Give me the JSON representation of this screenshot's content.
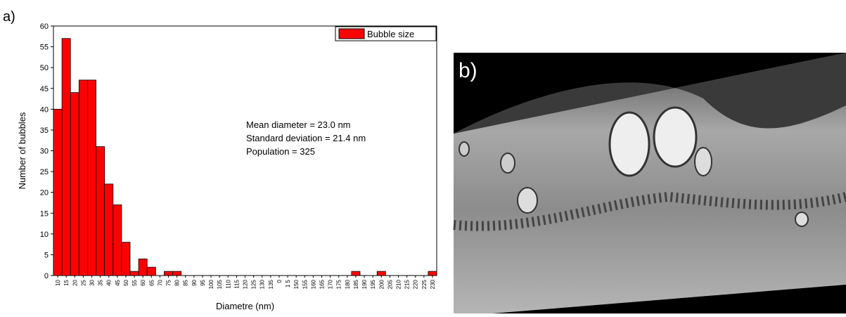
{
  "chart_data": {
    "type": "histogram",
    "xlabel": "Diametre (nm)",
    "ylabel": "Number of bubbles",
    "categories": [
      "10",
      "15",
      "20",
      "25",
      "30",
      "35",
      "40",
      "45",
      "50",
      "55",
      "60",
      "65",
      "70",
      "75",
      "80",
      "85",
      "90",
      "95",
      "100",
      "105",
      "110",
      "115",
      "120",
      "125",
      "130",
      "135",
      "0",
      "1 5",
      "150",
      "155",
      "160",
      "165",
      "170",
      "175",
      "180",
      "185",
      "190",
      "195",
      "200",
      "205",
      "210",
      "215",
      "220",
      "225",
      "230"
    ],
    "series": [
      {
        "name": "Bubble size",
        "color": "#ff0000",
        "values": [
          40,
          57,
          44,
          47,
          47,
          31,
          22,
          17,
          8,
          1,
          4,
          2,
          0,
          1,
          1,
          0,
          0,
          0,
          0,
          0,
          0,
          0,
          0,
          0,
          0,
          0,
          0,
          0,
          0,
          0,
          0,
          0,
          0,
          0,
          0,
          1,
          0,
          0,
          1,
          0,
          0,
          0,
          0,
          0,
          1
        ]
      }
    ],
    "ylim": [
      0,
      60
    ],
    "yticks": [
      0,
      5,
      10,
      15,
      20,
      25,
      30,
      35,
      40,
      45,
      50,
      55,
      60
    ],
    "legend": "top-right",
    "annotations": [
      "Mean diameter = 23.0 nm",
      "Standard deviation = 21.4 nm",
      "Population = 325"
    ]
  },
  "panel_labels": [
    "a)",
    "b)"
  ]
}
